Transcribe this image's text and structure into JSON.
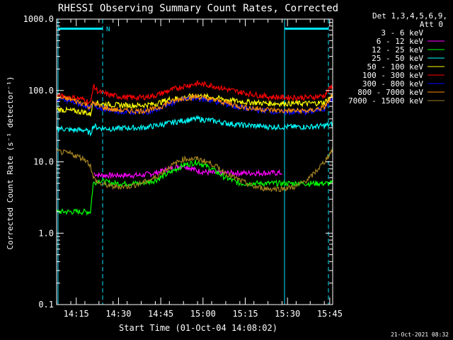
{
  "chart_data": {
    "type": "line",
    "title": "RHESSI Observing Summary Count Rates, Corrected",
    "xlabel": "Start Time (01-Oct-04 14:08:02)",
    "ylabel": "Corrected Count Rate (s⁻¹ detector⁻¹)",
    "y_scale": "log",
    "ylim": [
      0.1,
      1000
    ],
    "xlim": [
      "14:08:02",
      "15:46"
    ],
    "x_tick_labels": [
      "14:15",
      "14:30",
      "14:45",
      "15:00",
      "15:15",
      "15:30",
      "15:45"
    ],
    "y_tick_labels": [
      "0.1",
      "1.0",
      "10.0",
      "100.0",
      "1000.0"
    ],
    "legend_header": [
      "Det 1,3,4,5,6,9,",
      "Att 0"
    ],
    "legend_position": "top-right, outside plot",
    "footer": "21-Oct-2021 08:32",
    "flag_labels": [
      "N"
    ],
    "x_minutes_from_1408": [
      0,
      5,
      10,
      12,
      13,
      15,
      20,
      25,
      30,
      35,
      40,
      45,
      50,
      55,
      60,
      65,
      70,
      75,
      80,
      85,
      90,
      95,
      98
    ],
    "series": [
      {
        "name": "3 - 6 keV",
        "color": "#000000",
        "values": [
          null,
          null,
          null,
          null,
          null,
          null,
          null,
          null,
          null,
          null,
          null,
          null,
          null,
          null,
          null,
          null,
          null,
          null,
          null,
          null,
          null,
          null,
          null
        ]
      },
      {
        "name": "6 - 12 keV",
        "color": "#ff00ff",
        "values": [
          null,
          null,
          null,
          null,
          7,
          6.5,
          6.5,
          6.5,
          6.5,
          7,
          8,
          9,
          7.5,
          7,
          7,
          7,
          7,
          7,
          7,
          null,
          null,
          null,
          null
        ]
      },
      {
        "name": "12 - 25 keV",
        "color": "#00ff00",
        "values": [
          2.0,
          2.0,
          2.0,
          2.0,
          5,
          5.5,
          5,
          5,
          5,
          5.5,
          7,
          9,
          10,
          8,
          6,
          5,
          5,
          5,
          5,
          5,
          5,
          5,
          5
        ]
      },
      {
        "name": "25 - 50 keV",
        "color": "#00ffff",
        "values": [
          30,
          28,
          28,
          25,
          32,
          30,
          29,
          30,
          30,
          32,
          35,
          38,
          40,
          38,
          35,
          33,
          32,
          31,
          31,
          31,
          31,
          32,
          34
        ]
      },
      {
        "name": "50 - 100 keV",
        "color": "#ffff00",
        "values": [
          55,
          52,
          50,
          46,
          70,
          66,
          63,
          62,
          62,
          65,
          75,
          80,
          85,
          80,
          75,
          70,
          68,
          66,
          66,
          66,
          66,
          68,
          85
        ]
      },
      {
        "name": "100 - 300 keV",
        "color": "#ff0000",
        "values": [
          85,
          80,
          75,
          65,
          115,
          95,
          85,
          80,
          80,
          85,
          100,
          115,
          125,
          118,
          105,
          95,
          88,
          82,
          80,
          80,
          80,
          85,
          120
        ]
      },
      {
        "name": "300 - 800 keV",
        "color": "#0000ff",
        "values": [
          75,
          70,
          62,
          55,
          65,
          58,
          52,
          50,
          50,
          52,
          65,
          75,
          78,
          72,
          65,
          58,
          54,
          52,
          50,
          50,
          50,
          56,
          80
        ]
      },
      {
        "name": "800 - 7000 keV",
        "color": "#ff8c00",
        "values": [
          80,
          75,
          65,
          58,
          68,
          60,
          54,
          52,
          52,
          55,
          68,
          78,
          82,
          75,
          68,
          60,
          56,
          54,
          52,
          52,
          52,
          58,
          85
        ]
      },
      {
        "name": "7000 - 15000 keV",
        "color": "#a08020",
        "values": [
          14,
          13,
          11,
          9,
          6,
          5,
          4.5,
          4.5,
          5,
          6,
          8.5,
          11,
          11,
          9.5,
          7,
          5.5,
          4.5,
          4.2,
          4.2,
          4.5,
          6,
          10,
          15
        ]
      }
    ]
  }
}
